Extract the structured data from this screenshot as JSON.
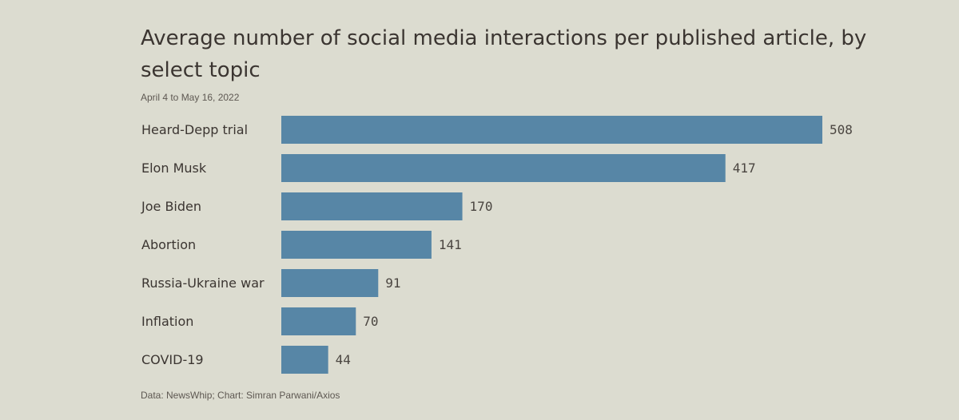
{
  "chart_data": {
    "type": "bar",
    "orientation": "horizontal",
    "title": "Average number of social media interactions per published article, by select topic",
    "subtitle": "April 4 to May 16, 2022",
    "categories": [
      "Heard-Depp trial",
      "Elon Musk",
      "Joe Biden",
      "Abortion",
      "Russia-Ukraine war",
      "Inflation",
      "COVID-19"
    ],
    "values": [
      508,
      417,
      170,
      141,
      91,
      70,
      44
    ],
    "xlim": [
      0,
      508
    ],
    "grid": false,
    "data_labels": true,
    "source": "Data: NewsWhip; Chart: Simran Parwani/Axios"
  },
  "colors": {
    "background": "#dcdcd0",
    "bar": "#5786a6",
    "text": "#3b3531"
  }
}
